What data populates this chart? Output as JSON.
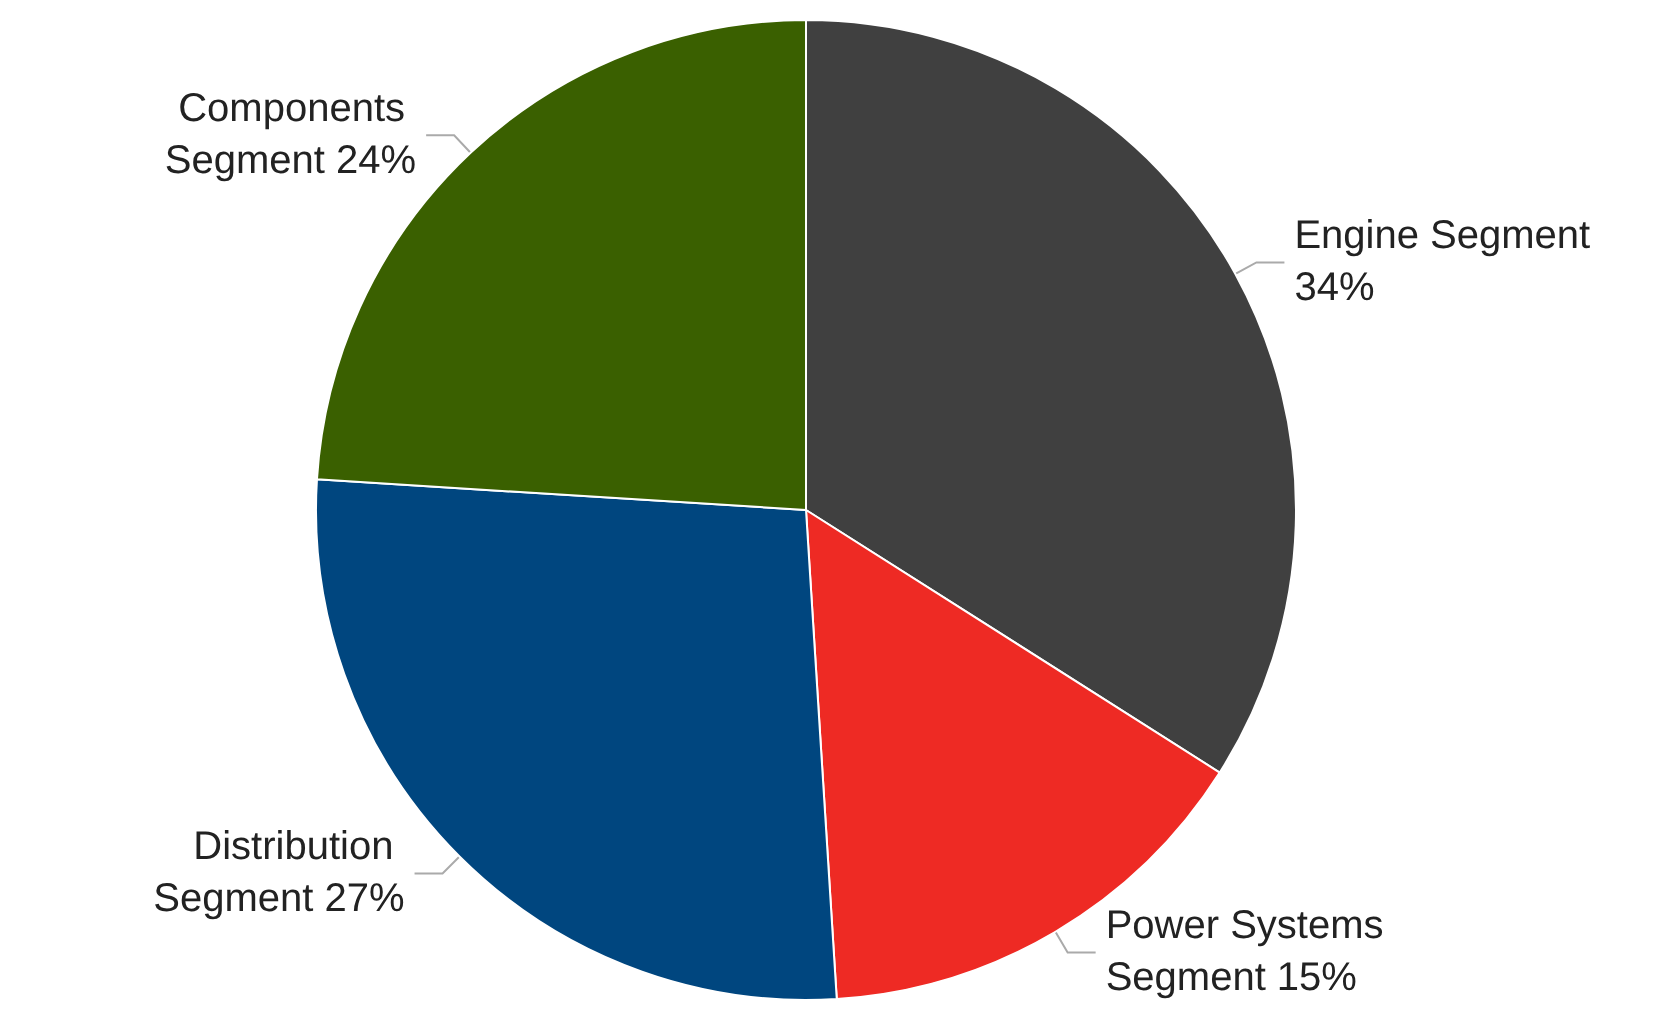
{
  "chart_data": {
    "type": "pie",
    "categories": [
      "Engine Segment",
      "Power Systems Segment",
      "Distribution Segment",
      "Components Segment"
    ],
    "values": [
      34,
      15,
      27,
      24
    ],
    "value_labels": [
      "34%",
      "15%",
      "27%",
      "24%"
    ],
    "colors": [
      "#404040",
      "#ee2a24",
      "#00467f",
      "#3a6000"
    ]
  }
}
